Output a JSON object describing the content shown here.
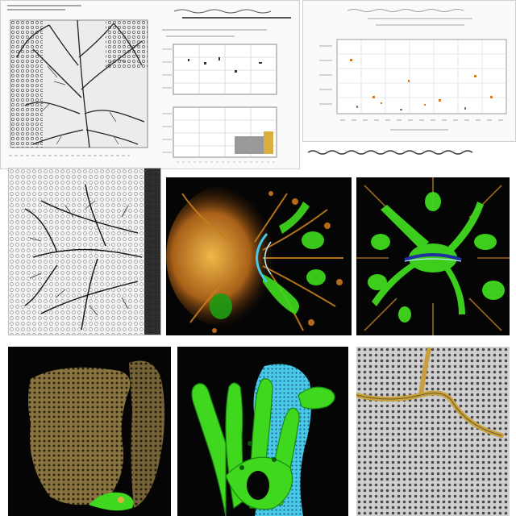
{
  "colors": {
    "paper": "#fafafa",
    "ink": "#222222",
    "grid": "#c8c8d4",
    "green": "#3fd81f",
    "cyan": "#43c8e6",
    "ochre": "#c8a040",
    "orange": "#d2781e",
    "background_dark": "#050505"
  },
  "icons": []
}
